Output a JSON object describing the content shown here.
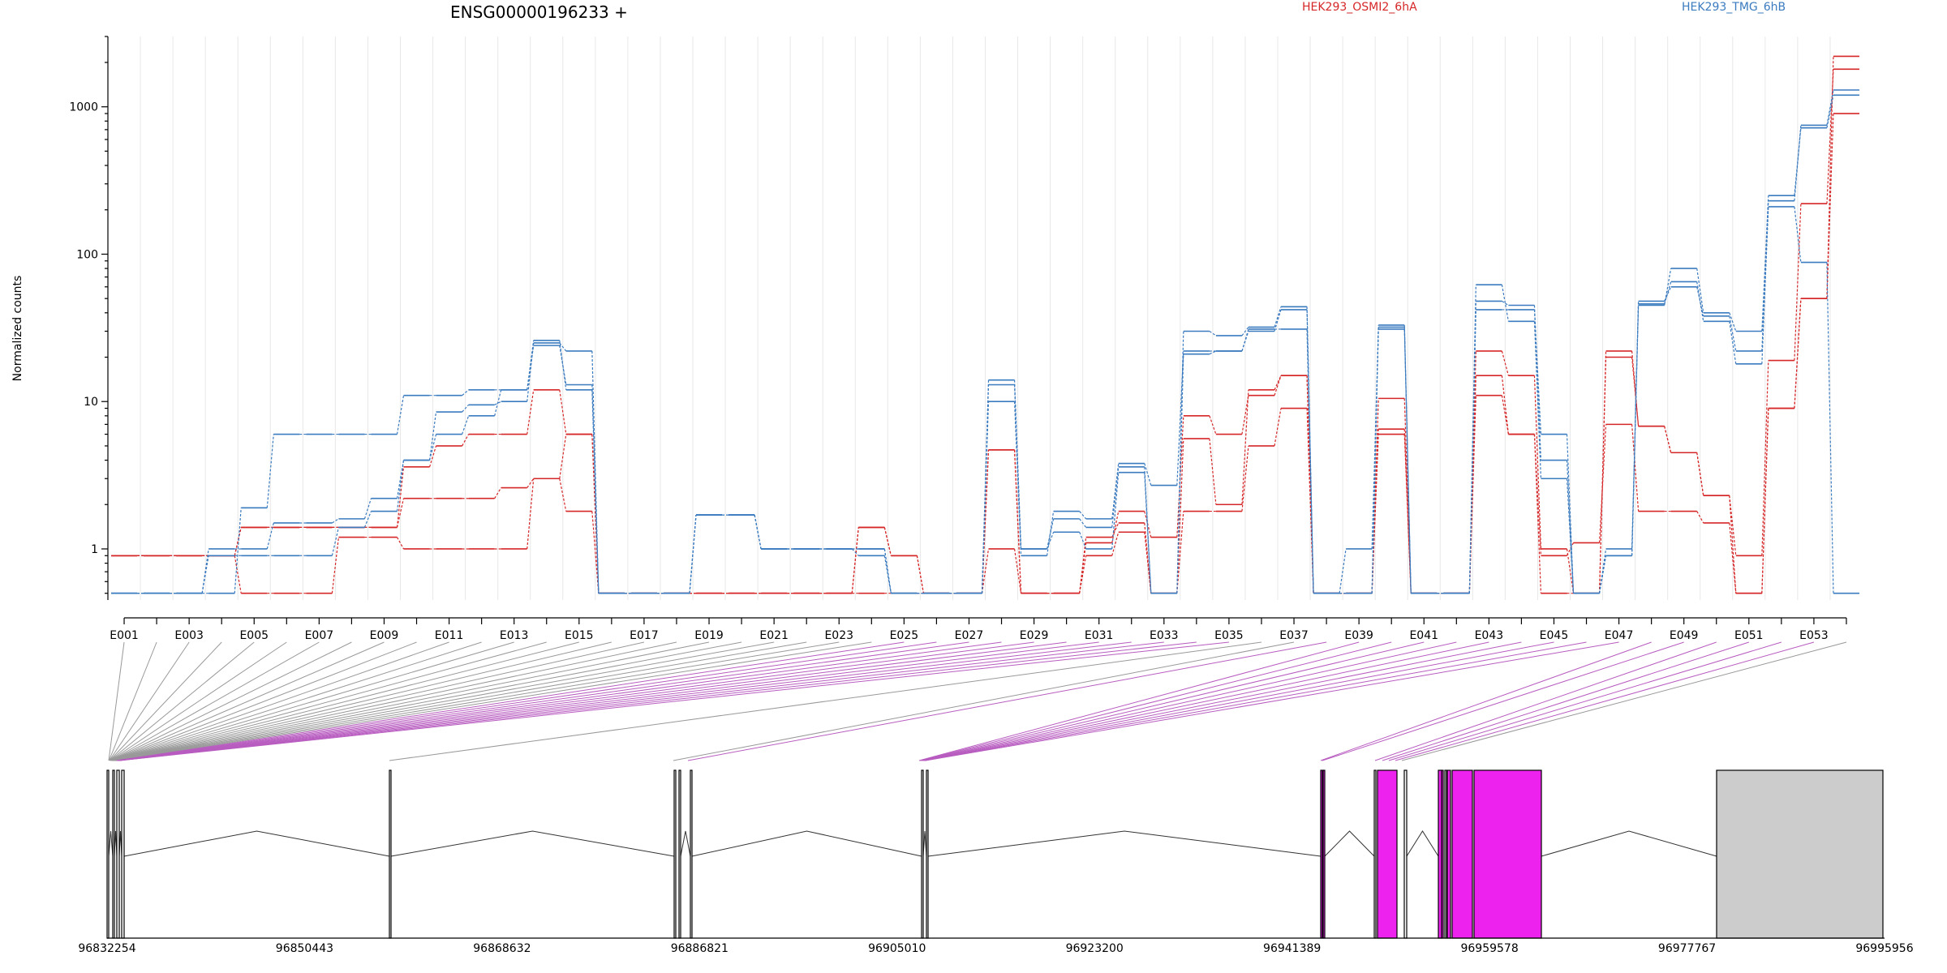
{
  "chart_data": {
    "type": "line",
    "title": "ENSG00000196233 +",
    "ylabel": "Normalized counts",
    "yscale": "log",
    "ylim": [
      0.45,
      3000
    ],
    "yticks": [
      1,
      10,
      100,
      1000
    ],
    "ytick_labels": [
      "1",
      "10",
      "100",
      "1000"
    ],
    "legend": [
      {
        "name": "HEK293_OSMI2_6hA",
        "color": "#d62728"
      },
      {
        "name": "HEK293_TMG_6hB",
        "color": "#3b7bbf"
      }
    ],
    "exons": [
      "E001",
      "E002",
      "E003",
      "E004",
      "E005",
      "E006",
      "E007",
      "E008",
      "E009",
      "E010",
      "E011",
      "E012",
      "E013",
      "E014",
      "E015",
      "E016",
      "E017",
      "E018",
      "E019",
      "E020",
      "E021",
      "E022",
      "E023",
      "E024",
      "E025",
      "E026",
      "E027",
      "E028",
      "E029",
      "E030",
      "E031",
      "E032",
      "E033",
      "E034",
      "E035",
      "E036",
      "E037",
      "E038",
      "E039",
      "E040",
      "E041",
      "E042",
      "E043",
      "E044",
      "E045",
      "E046",
      "E047",
      "E048",
      "E049",
      "E050",
      "E051",
      "E052",
      "E053",
      "E054"
    ],
    "exon_tick_labels": [
      "E001",
      "E003",
      "E005",
      "E007",
      "E009",
      "E011",
      "E013",
      "E015",
      "E017",
      "E019",
      "E021",
      "E023",
      "E025",
      "E027",
      "E029",
      "E031",
      "E033",
      "E035",
      "E037",
      "E039",
      "E041",
      "E043",
      "E045",
      "E047",
      "E049",
      "E051",
      "E053"
    ],
    "series": [
      {
        "group": "HEK293_OSMI2_6hA",
        "color": "#d62728",
        "values": [
          0.9,
          0.9,
          0.9,
          0.9,
          1.4,
          1.4,
          1.4,
          1.4,
          1.4,
          2.2,
          2.2,
          2.2,
          2.6,
          3.0,
          6.0,
          0.5,
          0.5,
          0.5,
          0.5,
          0.5,
          0.5,
          0.5,
          0.5,
          1.4,
          0.9,
          0.5,
          0.5,
          4.7,
          0.5,
          0.5,
          0.9,
          1.3,
          0.5,
          5.6,
          2.0,
          12,
          15,
          0.5,
          0.5,
          6.5,
          0.5,
          0.5,
          15,
          6,
          0.5,
          0.5,
          22,
          6.8,
          4.5,
          2.3,
          0.5,
          9,
          50,
          900
        ]
      },
      {
        "group": "HEK293_OSMI2_6hA",
        "color": "#d62728",
        "values": [
          0.9,
          0.9,
          0.9,
          0.9,
          1.4,
          1.4,
          1.4,
          1.4,
          1.4,
          3.6,
          5.0,
          6.0,
          6.0,
          12,
          6.0,
          0.5,
          0.5,
          0.5,
          0.5,
          0.5,
          0.5,
          0.5,
          0.5,
          1.4,
          0.9,
          0.5,
          0.5,
          4.7,
          0.5,
          0.5,
          1.1,
          1.8,
          1.2,
          8.0,
          6.0,
          11,
          15,
          0.5,
          0.5,
          10.5,
          0.5,
          0.5,
          22,
          15,
          1.0,
          0.5,
          20,
          6.8,
          4.5,
          2.3,
          0.9,
          19,
          220,
          1800
        ]
      },
      {
        "group": "HEK293_OSMI2_6hA",
        "color": "#d62728",
        "values": [
          0.9,
          0.9,
          0.9,
          0.9,
          0.5,
          0.5,
          0.5,
          1.2,
          1.2,
          1.0,
          1.0,
          1.0,
          1.0,
          3.0,
          1.8,
          0.5,
          0.5,
          0.5,
          0.5,
          0.5,
          0.5,
          0.5,
          0.5,
          0.5,
          0.5,
          0.5,
          0.5,
          1.0,
          0.5,
          0.5,
          1.2,
          1.5,
          0.5,
          1.8,
          1.8,
          5.0,
          9.0,
          0.5,
          0.5,
          6.0,
          0.5,
          0.5,
          11,
          6.0,
          0.9,
          1.1,
          7.0,
          1.8,
          1.8,
          1.5,
          0.5,
          9,
          50,
          2200
        ]
      },
      {
        "group": "HEK293_TMG_6hB",
        "color": "#3b7bbf",
        "values": [
          0.5,
          0.5,
          0.5,
          1.0,
          1.0,
          1.5,
          1.5,
          1.6,
          2.2,
          4.0,
          8.5,
          9.5,
          10,
          25,
          22,
          0.5,
          0.5,
          0.5,
          1.7,
          1.7,
          1.0,
          1.0,
          1.0,
          1.0,
          0.5,
          0.5,
          0.5,
          13,
          1.0,
          1.6,
          1.4,
          3.6,
          0.5,
          30,
          28,
          32,
          44,
          0.5,
          0.5,
          33,
          0.5,
          0.5,
          62,
          35,
          3.0,
          0.5,
          0.9,
          48,
          60,
          38,
          22,
          230,
          750,
          1300
        ]
      },
      {
        "group": "HEK293_TMG_6hB",
        "color": "#3b7bbf",
        "values": [
          0.5,
          0.5,
          0.5,
          0.9,
          0.9,
          0.9,
          0.9,
          1.4,
          1.8,
          4.0,
          6.0,
          8.0,
          12,
          26,
          12,
          0.5,
          0.5,
          0.5,
          1.7,
          1.7,
          1.0,
          1.0,
          1.0,
          0.9,
          0.5,
          0.5,
          0.5,
          10,
          0.9,
          1.8,
          1.6,
          3.8,
          2.7,
          22,
          22,
          30,
          42,
          0.5,
          0.5,
          32,
          0.5,
          0.5,
          42,
          42,
          6.0,
          0.5,
          1.0,
          45,
          80,
          40,
          30,
          250,
          720,
          1200
        ]
      },
      {
        "group": "HEK293_TMG_6hB",
        "color": "#3b7bbf",
        "values": [
          0.5,
          0.5,
          0.5,
          0.5,
          1.9,
          6.0,
          6.0,
          6.0,
          6.0,
          11,
          11,
          12,
          12,
          24,
          13,
          0.5,
          0.5,
          0.5,
          1.7,
          1.7,
          1.0,
          1.0,
          1.0,
          1.0,
          0.5,
          0.5,
          0.5,
          14,
          1.0,
          1.3,
          1.0,
          3.3,
          0.5,
          21,
          22,
          31,
          31,
          0.5,
          1.0,
          31,
          0.5,
          0.5,
          48,
          45,
          4.0,
          0.5,
          0.9,
          46,
          65,
          35,
          18,
          210,
          88,
          0.5
        ]
      }
    ],
    "genomic_ticks": [
      "96832254",
      "96850443",
      "96868632",
      "96886821",
      "96905010",
      "96923200",
      "96941389",
      "96959578",
      "96977767",
      "96995956"
    ],
    "genomic_range": [
      96832254,
      96995956
    ],
    "exon_highlight_color": "#ee22ee",
    "colors": {
      "line_highlight": "#b85cc0",
      "line_normal": "#999999",
      "exon_gray": "#cccccc"
    }
  }
}
